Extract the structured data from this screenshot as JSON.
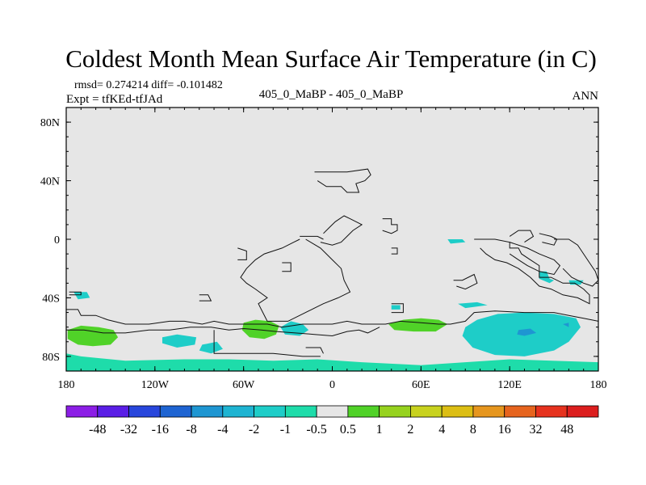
{
  "chart_data": {
    "type": "heatmap",
    "title": "Coldest Month Mean Surface Air Temperature (in C)",
    "stats_text": "rmsd= 0.274214  diff= -0.101482",
    "expt_text": "Expt = tfKEd-tfJAd",
    "subtitle": "405_0_MaBP - 405_0_MaBP",
    "season": "ANN",
    "xlim": [
      -180,
      180
    ],
    "ylim": [
      -90,
      90
    ],
    "x_ticks": [
      {
        "value": -180,
        "label": "180"
      },
      {
        "value": -120,
        "label": "120W"
      },
      {
        "value": -60,
        "label": "60W"
      },
      {
        "value": 0,
        "label": "0"
      },
      {
        "value": 60,
        "label": "60E"
      },
      {
        "value": 120,
        "label": "120E"
      },
      {
        "value": 180,
        "label": "180"
      }
    ],
    "y_ticks": [
      {
        "value": 80,
        "label": "80N"
      },
      {
        "value": 40,
        "label": "40N"
      },
      {
        "value": 0,
        "label": "0"
      },
      {
        "value": -40,
        "label": "40S"
      },
      {
        "value": -80,
        "label": "80S"
      }
    ],
    "background_color": "#e6e6e6",
    "colorbar": {
      "labels": [
        "-48",
        "-32",
        "-16",
        "-8",
        "-4",
        "-2",
        "-1",
        "-0.5",
        "0.5",
        "1",
        "2",
        "4",
        "8",
        "16",
        "32",
        "48"
      ],
      "colors": [
        "#8c1ee6",
        "#5a1ee6",
        "#2846dc",
        "#1e64d2",
        "#1e96d2",
        "#1eb4d2",
        "#1ecdc8",
        "#1edcaa",
        "#e6e6e6",
        "#50d228",
        "#96d21e",
        "#c8d21e",
        "#dcbe14",
        "#e6961e",
        "#e6641e",
        "#e6321e",
        "#dc1e1e"
      ]
    },
    "anomaly_regions": [
      {
        "fill": "#1edcaa",
        "pts": [
          [
            -180,
            -78
          ],
          [
            -180,
            -90
          ],
          [
            180,
            -90
          ],
          [
            180,
            -84
          ],
          [
            120,
            -82
          ],
          [
            60,
            -86
          ],
          [
            20,
            -84
          ],
          [
            -10,
            -82
          ],
          [
            -40,
            -83
          ],
          [
            -70,
            -82
          ],
          [
            -100,
            -82
          ],
          [
            -140,
            -83
          ],
          [
            -170,
            -80
          ]
        ]
      },
      {
        "fill": "#50d228",
        "pts": [
          [
            -179,
            -62
          ],
          [
            -170,
            -59
          ],
          [
            -158,
            -60
          ],
          [
            -148,
            -62
          ],
          [
            -145,
            -67
          ],
          [
            -150,
            -72
          ],
          [
            -162,
            -73
          ],
          [
            -172,
            -72
          ],
          [
            -179,
            -68
          ]
        ]
      },
      {
        "fill": "#50d228",
        "pts": [
          [
            -60,
            -57
          ],
          [
            -52,
            -55
          ],
          [
            -42,
            -56
          ],
          [
            -36,
            -59
          ],
          [
            -38,
            -65
          ],
          [
            -46,
            -68
          ],
          [
            -56,
            -67
          ],
          [
            -61,
            -62
          ]
        ]
      },
      {
        "fill": "#1ecdc8",
        "pts": [
          [
            -35,
            -60
          ],
          [
            -28,
            -56
          ],
          [
            -20,
            -58
          ],
          [
            -16,
            -62
          ],
          [
            -22,
            -66
          ],
          [
            -32,
            -65
          ]
        ]
      },
      {
        "fill": "#50d228",
        "pts": [
          [
            38,
            -58
          ],
          [
            48,
            -55
          ],
          [
            60,
            -54
          ],
          [
            72,
            -55
          ],
          [
            78,
            -58
          ],
          [
            70,
            -63
          ],
          [
            55,
            -63
          ],
          [
            42,
            -62
          ]
        ]
      },
      {
        "fill": "#1ecdc8",
        "pts": [
          [
            90,
            -60
          ],
          [
            98,
            -55
          ],
          [
            112,
            -51
          ],
          [
            130,
            -50
          ],
          [
            150,
            -51
          ],
          [
            165,
            -54
          ],
          [
            168,
            -60
          ],
          [
            160,
            -70
          ],
          [
            150,
            -76
          ],
          [
            130,
            -80
          ],
          [
            110,
            -79
          ],
          [
            95,
            -74
          ],
          [
            88,
            -66
          ]
        ]
      },
      {
        "fill": "#1ecdc8",
        "pts": [
          [
            -115,
            -67
          ],
          [
            -105,
            -65
          ],
          [
            -92,
            -67
          ],
          [
            -93,
            -72
          ],
          [
            -105,
            -74
          ],
          [
            -115,
            -71
          ]
        ]
      },
      {
        "fill": "#1ecdc8",
        "pts": [
          [
            -88,
            -72
          ],
          [
            -78,
            -70
          ],
          [
            -74,
            -75
          ],
          [
            -82,
            -78
          ],
          [
            -90,
            -76
          ]
        ]
      },
      {
        "fill": "#1ecdc8",
        "pts": [
          [
            -175,
            -36
          ],
          [
            -166,
            -36
          ],
          [
            -164,
            -40
          ],
          [
            -172,
            -41
          ]
        ]
      },
      {
        "fill": "#1ecdc8",
        "pts": [
          [
            78,
            0
          ],
          [
            88,
            0
          ],
          [
            90,
            -2
          ],
          [
            80,
            -3
          ]
        ]
      },
      {
        "fill": "#1ecdc8",
        "pts": [
          [
            40,
            -45
          ],
          [
            46,
            -45
          ],
          [
            46,
            -48
          ],
          [
            40,
            -48
          ]
        ]
      },
      {
        "fill": "#1ecdc8",
        "pts": [
          [
            85,
            -44
          ],
          [
            98,
            -43
          ],
          [
            105,
            -45
          ],
          [
            90,
            -47
          ]
        ]
      },
      {
        "fill": "#1ecdc8",
        "pts": [
          [
            140,
            -22
          ],
          [
            145,
            -22
          ],
          [
            147,
            -27
          ],
          [
            150,
            -28
          ],
          [
            147,
            -30
          ],
          [
            140,
            -27
          ]
        ]
      },
      {
        "fill": "#1ecdc8",
        "pts": [
          [
            160,
            -28
          ],
          [
            170,
            -28
          ],
          [
            168,
            -31
          ],
          [
            161,
            -31
          ]
        ]
      }
    ],
    "anomaly_cores": [
      {
        "fill": "#1e96d2",
        "pts": [
          [
            126,
            -62
          ],
          [
            134,
            -61
          ],
          [
            138,
            -64
          ],
          [
            130,
            -66
          ],
          [
            125,
            -65
          ]
        ]
      },
      {
        "fill": "#1e96d2",
        "pts": [
          [
            156,
            -58
          ],
          [
            160,
            -57
          ],
          [
            160,
            -60
          ]
        ]
      }
    ],
    "coastlines": [
      [
        [
          -178,
          -36
        ],
        [
          -170,
          -36
        ],
        [
          -170,
          -38
        ],
        [
          -178,
          -38
        ]
      ],
      [
        [
          -180,
          -48
        ],
        [
          -172,
          -48
        ],
        [
          -170,
          -52
        ],
        [
          -160,
          -52
        ],
        [
          -152,
          -55
        ],
        [
          -140,
          -58
        ],
        [
          -124,
          -58
        ],
        [
          -110,
          -56
        ],
        [
          -100,
          -56
        ],
        [
          -88,
          -58
        ],
        [
          -80,
          -56
        ],
        [
          -70,
          -58
        ],
        [
          -58,
          -58
        ],
        [
          -44,
          -58
        ],
        [
          -34,
          -60
        ],
        [
          -20,
          -58
        ],
        [
          -8,
          -58
        ],
        [
          0,
          -58
        ],
        [
          10,
          -56
        ],
        [
          20,
          -58
        ],
        [
          28,
          -58
        ],
        [
          36,
          -58
        ],
        [
          46,
          -56
        ],
        [
          60,
          -57
        ],
        [
          72,
          -58
        ],
        [
          80,
          -58
        ],
        [
          90,
          -56
        ],
        [
          96,
          -50
        ],
        [
          110,
          -49
        ],
        [
          130,
          -50
        ],
        [
          150,
          -50
        ],
        [
          160,
          -52
        ],
        [
          170,
          -54
        ],
        [
          180,
          -56
        ]
      ],
      [
        [
          -180,
          -62
        ],
        [
          -168,
          -62
        ],
        [
          -155,
          -64
        ],
        [
          -140,
          -64
        ],
        [
          -124,
          -62
        ],
        [
          -110,
          -62
        ],
        [
          -96,
          -60
        ],
        [
          -82,
          -60
        ],
        [
          -70,
          -62
        ],
        [
          -60,
          -61
        ],
        [
          -48,
          -62
        ],
        [
          -38,
          -63
        ],
        [
          -25,
          -64
        ],
        [
          -12,
          -65
        ],
        [
          0,
          -66
        ],
        [
          10,
          -63
        ],
        [
          18,
          -62
        ],
        [
          24,
          -64
        ],
        [
          32,
          -60
        ]
      ],
      [
        [
          -80,
          -62
        ],
        [
          -80,
          -78
        ],
        [
          -40,
          -78
        ],
        [
          -20,
          -80
        ],
        [
          -8,
          -80
        ]
      ],
      [
        [
          -18,
          -74
        ],
        [
          -8,
          -74
        ],
        [
          -6,
          -78
        ]
      ],
      [
        [
          -18,
          0
        ],
        [
          -8,
          -6
        ],
        [
          -4,
          -10
        ],
        [
          0,
          -14
        ],
        [
          6,
          -20
        ],
        [
          8,
          -28
        ],
        [
          12,
          -36
        ],
        [
          4,
          -40
        ],
        [
          -6,
          -44
        ],
        [
          -14,
          -48
        ],
        [
          -22,
          -52
        ],
        [
          -30,
          -56
        ],
        [
          -44,
          -56
        ],
        [
          -48,
          -48
        ],
        [
          -50,
          -44
        ],
        [
          -44,
          -40
        ],
        [
          -52,
          -34
        ],
        [
          -58,
          -30
        ],
        [
          -62,
          -26
        ],
        [
          -58,
          -20
        ],
        [
          -52,
          -14
        ],
        [
          -46,
          -10
        ],
        [
          -40,
          -8
        ],
        [
          -34,
          -6
        ],
        [
          -26,
          -2
        ],
        [
          -22,
          0
        ]
      ],
      [
        [
          -8,
          -2
        ],
        [
          0,
          -4
        ],
        [
          6,
          -2
        ],
        [
          10,
          2
        ],
        [
          14,
          6
        ],
        [
          20,
          10
        ],
        [
          12,
          14
        ],
        [
          8,
          16
        ],
        [
          2,
          12
        ],
        [
          -2,
          8
        ],
        [
          -6,
          4
        ]
      ],
      [
        [
          -64,
          -6
        ],
        [
          -58,
          -8
        ],
        [
          -58,
          -14
        ],
        [
          -64,
          -14
        ]
      ],
      [
        [
          -22,
          2
        ],
        [
          -10,
          2
        ],
        [
          -6,
          0
        ]
      ],
      [
        [
          -12,
          46
        ],
        [
          0,
          46
        ],
        [
          10,
          46
        ],
        [
          24,
          48
        ],
        [
          26,
          44
        ],
        [
          22,
          40
        ],
        [
          16,
          38
        ],
        [
          18,
          32
        ],
        [
          10,
          32
        ],
        [
          6,
          36
        ],
        [
          -4,
          36
        ],
        [
          -10,
          40
        ]
      ],
      [
        [
          34,
          14
        ],
        [
          40,
          14
        ],
        [
          40,
          10
        ],
        [
          44,
          10
        ],
        [
          44,
          6
        ],
        [
          40,
          4
        ],
        [
          34,
          6
        ]
      ],
      [
        [
          96,
          0
        ],
        [
          110,
          0
        ],
        [
          120,
          -2
        ],
        [
          120,
          -6
        ],
        [
          126,
          -6
        ],
        [
          128,
          -10
        ],
        [
          134,
          -14
        ],
        [
          140,
          -18
        ],
        [
          140,
          -26
        ],
        [
          148,
          -26
        ],
        [
          156,
          -30
        ],
        [
          164,
          -30
        ],
        [
          170,
          -34
        ],
        [
          174,
          -38
        ],
        [
          174,
          -44
        ],
        [
          166,
          -40
        ],
        [
          156,
          -38
        ],
        [
          148,
          -34
        ],
        [
          140,
          -32
        ],
        [
          134,
          -26
        ],
        [
          126,
          -20
        ],
        [
          118,
          -16
        ],
        [
          110,
          -14
        ],
        [
          104,
          -10
        ],
        [
          100,
          -6
        ]
      ],
      [
        [
          120,
          -2
        ],
        [
          132,
          -6
        ],
        [
          140,
          -10
        ],
        [
          150,
          -14
        ],
        [
          154,
          -18
        ],
        [
          150,
          -24
        ],
        [
          140,
          -22
        ],
        [
          132,
          -18
        ],
        [
          126,
          -14
        ],
        [
          120,
          -10
        ]
      ],
      [
        [
          140,
          4
        ],
        [
          148,
          2
        ],
        [
          152,
          0
        ],
        [
          150,
          -4
        ],
        [
          142,
          -2
        ]
      ],
      [
        [
          150,
          0
        ],
        [
          160,
          0
        ],
        [
          166,
          -4
        ],
        [
          170,
          -10
        ],
        [
          174,
          -16
        ],
        [
          178,
          -22
        ],
        [
          180,
          -28
        ],
        [
          176,
          -32
        ],
        [
          170,
          -30
        ],
        [
          162,
          -26
        ],
        [
          156,
          -20
        ]
      ],
      [
        [
          120,
          2
        ],
        [
          126,
          6
        ],
        [
          134,
          6
        ],
        [
          136,
          2
        ],
        [
          130,
          -2
        ]
      ],
      [
        [
          82,
          -28
        ],
        [
          88,
          -28
        ],
        [
          96,
          -24
        ],
        [
          98,
          -30
        ],
        [
          90,
          -34
        ],
        [
          84,
          -32
        ]
      ],
      [
        [
          40,
          -44
        ],
        [
          48,
          -44
        ],
        [
          48,
          -50
        ],
        [
          40,
          -50
        ]
      ],
      [
        [
          -90,
          -38
        ],
        [
          -84,
          -38
        ],
        [
          -82,
          -42
        ],
        [
          -90,
          -42
        ]
      ],
      [
        [
          -34,
          -16
        ],
        [
          -28,
          -16
        ],
        [
          -28,
          -22
        ],
        [
          -34,
          -22
        ]
      ],
      [
        [
          40,
          -6
        ],
        [
          44,
          -6
        ],
        [
          44,
          -10
        ],
        [
          40,
          -10
        ]
      ]
    ]
  }
}
